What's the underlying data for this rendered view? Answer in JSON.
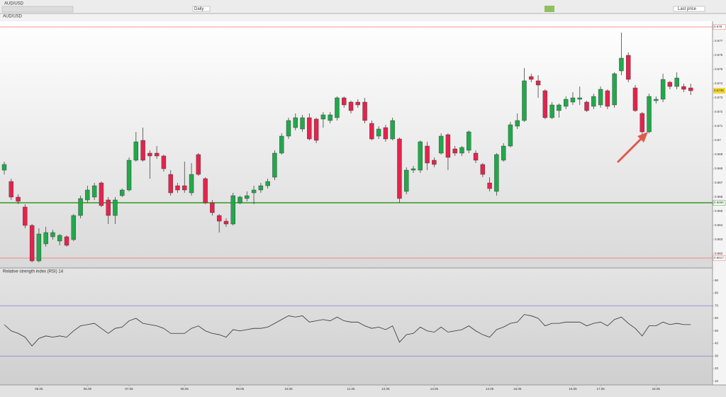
{
  "toolbar": {
    "symbol": "AUD/USD",
    "interval": "Daily",
    "price_type": "Last price"
  },
  "chart_data": [
    {
      "type": "candlestick",
      "legend": "AUD/USD",
      "categories": [
        null,
        null,
        null,
        null,
        null,
        "05.05",
        null,
        null,
        null,
        null,
        null,
        null,
        "06.05",
        null,
        null,
        null,
        null,
        null,
        "07.05",
        null,
        null,
        null,
        null,
        null,
        null,
        null,
        "08.05",
        null,
        null,
        null,
        null,
        null,
        null,
        null,
        "09.05",
        null,
        null,
        null,
        null,
        null,
        null,
        "10.05",
        null,
        null,
        null,
        null,
        null,
        null,
        null,
        null,
        "11.05",
        null,
        null,
        null,
        null,
        "12.05",
        null,
        null,
        null,
        null,
        null,
        null,
        "13.05",
        null,
        null,
        null,
        null,
        null,
        null,
        null,
        "14.05",
        null,
        null,
        null,
        "15.05",
        null,
        null,
        null,
        null,
        null,
        null,
        null,
        "16.05",
        null,
        null,
        null,
        "17.05",
        null,
        null,
        null,
        null,
        null,
        null,
        null,
        "18.05",
        null,
        null,
        null,
        null,
        null
      ],
      "open": [
        0.6679,
        0.6671,
        0.666,
        0.6653,
        0.664,
        0.6615,
        0.6627,
        0.6632,
        0.6629,
        0.6632,
        0.663,
        0.6647,
        0.6658,
        0.666,
        0.667,
        0.6658,
        0.6647,
        0.6661,
        0.6665,
        0.6686,
        0.67,
        0.6691,
        0.6691,
        0.6689,
        0.6676,
        0.6668,
        0.6668,
        0.6663,
        0.669,
        0.6673,
        0.6656,
        0.6647,
        0.6643,
        0.6641,
        0.6656,
        0.6659,
        0.6663,
        0.6665,
        0.6668,
        0.6674,
        0.6691,
        0.6703,
        0.6709,
        0.6708,
        0.6716,
        0.6715,
        0.6715,
        0.6714,
        0.6716,
        0.673,
        0.6727,
        0.6727,
        0.6727,
        0.6712,
        0.6703,
        0.6709,
        0.6701,
        0.6701,
        0.6664,
        0.6679,
        0.6679,
        0.6696,
        0.6686,
        0.6691,
        0.6704,
        0.6694,
        0.6691,
        0.6693,
        0.6691,
        0.6683,
        0.667,
        0.6664,
        0.6686,
        0.6696,
        0.671,
        0.6714,
        0.6745,
        0.6742,
        0.6735,
        0.6716,
        0.6721,
        0.6724,
        0.6727,
        0.6729,
        0.6727,
        0.6724,
        0.6725,
        0.6735,
        0.6725,
        0.6749,
        0.676,
        0.6737,
        0.6719,
        0.6706,
        0.6728,
        0.6729,
        0.6741,
        0.6738,
        0.6738,
        0.6737
      ],
      "high": [
        0.6685,
        0.6673,
        0.6662,
        0.6655,
        0.6641,
        0.6638,
        0.6639,
        0.6637,
        0.6634,
        0.6633,
        0.6648,
        0.6661,
        0.6668,
        0.667,
        0.6671,
        0.666,
        0.666,
        0.6666,
        0.6688,
        0.6706,
        0.6709,
        0.6693,
        0.6696,
        0.669,
        0.6679,
        0.667,
        0.6685,
        0.6684,
        0.6691,
        0.6674,
        0.6658,
        0.6648,
        0.6645,
        0.6663,
        0.6661,
        0.6664,
        0.6668,
        0.667,
        0.6673,
        0.6693,
        0.6705,
        0.6716,
        0.6719,
        0.6718,
        0.6719,
        0.6716,
        0.672,
        0.672,
        0.6731,
        0.6731,
        0.6728,
        0.6729,
        0.673,
        0.6714,
        0.671,
        0.6711,
        0.6716,
        0.6702,
        0.6681,
        0.6682,
        0.67,
        0.6699,
        0.6688,
        0.6705,
        0.6705,
        0.6696,
        0.6696,
        0.6707,
        0.6693,
        0.6684,
        0.6674,
        0.6691,
        0.6698,
        0.6713,
        0.6719,
        0.6751,
        0.6747,
        0.6746,
        0.6736,
        0.6727,
        0.6726,
        0.6731,
        0.6734,
        0.6738,
        0.6728,
        0.6733,
        0.6738,
        0.6736,
        0.6748,
        0.6776,
        0.6762,
        0.6739,
        0.672,
        0.6733,
        0.6731,
        0.6747,
        0.6742,
        0.6748,
        0.674,
        0.674
      ],
      "low": [
        0.6676,
        0.6658,
        0.6655,
        0.6638,
        0.6614,
        0.6614,
        0.6625,
        0.663,
        0.6626,
        0.6625,
        0.6629,
        0.6645,
        0.6656,
        0.6658,
        0.6653,
        0.6641,
        0.6641,
        0.666,
        0.6664,
        0.6685,
        0.6685,
        0.6673,
        0.6687,
        0.6678,
        0.6661,
        0.6663,
        0.6663,
        0.6661,
        0.6675,
        0.6655,
        0.6647,
        0.6635,
        0.6639,
        0.664,
        0.6655,
        0.6657,
        0.6655,
        0.6663,
        0.6666,
        0.6672,
        0.669,
        0.6701,
        0.6707,
        0.6706,
        0.67,
        0.6698,
        0.6709,
        0.6712,
        0.6714,
        0.6723,
        0.6719,
        0.6723,
        0.6712,
        0.67,
        0.6701,
        0.6699,
        0.67,
        0.6656,
        0.6662,
        0.6677,
        0.6677,
        0.6679,
        0.6681,
        0.669,
        0.6679,
        0.6689,
        0.6689,
        0.6691,
        0.6684,
        0.6674,
        0.6664,
        0.6661,
        0.6685,
        0.6695,
        0.6708,
        0.6713,
        0.6741,
        0.673,
        0.6715,
        0.6715,
        0.6716,
        0.6722,
        0.6725,
        0.6725,
        0.672,
        0.6722,
        0.6723,
        0.6722,
        0.6723,
        0.6746,
        0.6741,
        0.672,
        0.6704,
        0.6705,
        0.6726,
        0.6727,
        0.6736,
        0.6736,
        0.6734,
        0.6732
      ],
      "close": [
        0.6683,
        0.666,
        0.6657,
        0.664,
        0.6615,
        0.6634,
        0.6635,
        0.6635,
        0.6633,
        0.6626,
        0.6647,
        0.6659,
        0.6665,
        0.6668,
        0.6654,
        0.6647,
        0.6658,
        0.6665,
        0.6686,
        0.6699,
        0.6686,
        0.6689,
        0.6689,
        0.668,
        0.6663,
        0.6665,
        0.6665,
        0.6676,
        0.6676,
        0.6656,
        0.6649,
        0.6643,
        0.6641,
        0.6661,
        0.666,
        0.6661,
        0.6665,
        0.6668,
        0.6671,
        0.6691,
        0.6703,
        0.6714,
        0.6716,
        0.6716,
        0.6701,
        0.67,
        0.6718,
        0.6718,
        0.673,
        0.6725,
        0.6721,
        0.6725,
        0.6714,
        0.6701,
        0.6708,
        0.6701,
        0.6714,
        0.6659,
        0.6679,
        0.668,
        0.6699,
        0.6684,
        0.6683,
        0.6703,
        0.6688,
        0.6691,
        0.6695,
        0.6706,
        0.6686,
        0.6676,
        0.6666,
        0.669,
        0.6696,
        0.6711,
        0.6714,
        0.6742,
        0.6743,
        0.6739,
        0.6716,
        0.6725,
        0.6725,
        0.6729,
        0.673,
        0.673,
        0.6721,
        0.6731,
        0.6736,
        0.6724,
        0.6747,
        0.6758,
        0.6743,
        0.6721,
        0.6706,
        0.6731,
        0.6729,
        0.6743,
        0.6738,
        0.6744,
        0.6736,
        0.6735
      ],
      "up_color": "#22a84a",
      "down_color": "#e5234c",
      "ylim": [
        0.661,
        0.6784
      ],
      "yticks": [
        0.662,
        0.663,
        0.664,
        0.665,
        0.666,
        0.667,
        0.668,
        0.669,
        0.67,
        0.671,
        0.672,
        0.673,
        0.674,
        0.675,
        0.676,
        0.677,
        0.678
      ],
      "hlines": [
        {
          "value": 0.678,
          "color": "#f07070"
        },
        {
          "value": 0.6656,
          "color": "#2e9a1e"
        },
        {
          "value": 0.6617,
          "color": "#f07070"
        }
      ]
    },
    {
      "type": "line",
      "legend": "Relative strength index (RSI) 14",
      "color": "#333333",
      "values": [
        55,
        50,
        48,
        45,
        38,
        44,
        46,
        45,
        46,
        45,
        50,
        54,
        55,
        56,
        52,
        48,
        52,
        53,
        58,
        60,
        56,
        55,
        54,
        52,
        48,
        48,
        48,
        52,
        54,
        50,
        48,
        47,
        45,
        51,
        50,
        51,
        52,
        52,
        53,
        56,
        59,
        62,
        61,
        62,
        57,
        58,
        59,
        58,
        61,
        58,
        57,
        57,
        54,
        52,
        53,
        51,
        54,
        41,
        47,
        48,
        53,
        50,
        49,
        53,
        49,
        50,
        51,
        54,
        50,
        47,
        45,
        51,
        53,
        56,
        57,
        63,
        62,
        60,
        54,
        56,
        56,
        57,
        57,
        57,
        54,
        56,
        57,
        54,
        59,
        61,
        56,
        52,
        46,
        54,
        54,
        57,
        55,
        56,
        55,
        55
      ],
      "ylim": [
        5,
        100
      ],
      "yticks": [
        10,
        20,
        30,
        40,
        50,
        60,
        70,
        80,
        90
      ],
      "hlines": [
        {
          "value": 70,
          "color": "#8080e0"
        },
        {
          "value": 30,
          "color": "#8080e0"
        }
      ]
    }
  ]
}
